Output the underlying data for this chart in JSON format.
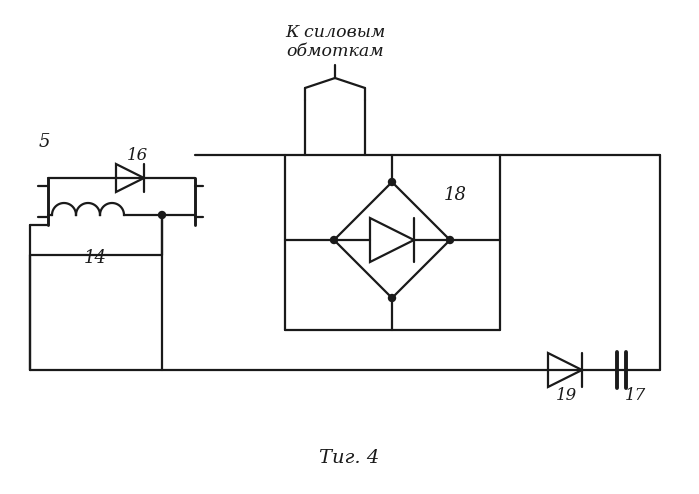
{
  "title": "Τиг. 4",
  "label_k_silovym": "К силовым\nобмоткам",
  "label_5": "5",
  "label_14": "14",
  "label_16": "16",
  "label_17": "17",
  "label_18": "18",
  "label_19": "19",
  "bg_color": "#ffffff",
  "line_color": "#1a1a1a",
  "line_width": 1.6,
  "fig_width": 6.99,
  "fig_height": 4.94
}
